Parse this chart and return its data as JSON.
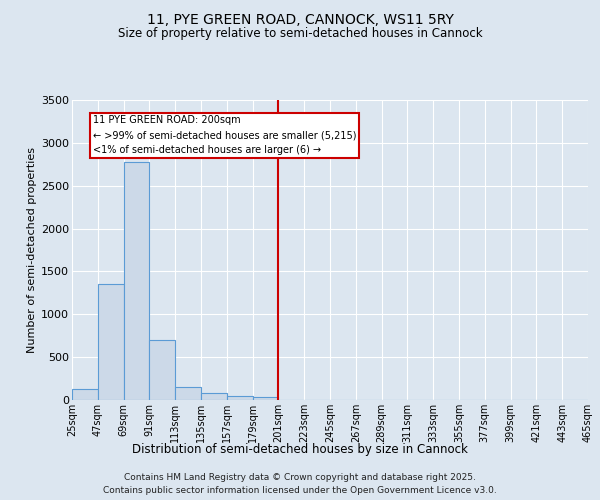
{
  "title": "11, PYE GREEN ROAD, CANNOCK, WS11 5RY",
  "subtitle": "Size of property relative to semi-detached houses in Cannock",
  "xlabel": "Distribution of semi-detached houses by size in Cannock",
  "ylabel": "Number of semi-detached properties",
  "bar_values": [
    130,
    1350,
    2780,
    700,
    150,
    80,
    50,
    30,
    0,
    0,
    0,
    0,
    0,
    0,
    0,
    0,
    0,
    0,
    0,
    0
  ],
  "bar_color": "#ccd9e8",
  "bar_edge_color": "#5b9bd5",
  "categories": [
    "25sqm",
    "47sqm",
    "69sqm",
    "91sqm",
    "113sqm",
    "135sqm",
    "157sqm",
    "179sqm",
    "201sqm",
    "223sqm",
    "245sqm",
    "267sqm",
    "289sqm",
    "311sqm",
    "333sqm",
    "355sqm",
    "377sqm",
    "399sqm",
    "421sqm",
    "443sqm",
    "465sqm"
  ],
  "vline_x": 8,
  "vline_color": "#cc0000",
  "annotation_title": "11 PYE GREEN ROAD: 200sqm",
  "annotation_line1": "← >99% of semi-detached houses are smaller (5,215)",
  "annotation_line2": "<1% of semi-detached houses are larger (6) →",
  "annotation_box_color": "#ffffff",
  "annotation_box_edge": "#cc0000",
  "ylim": [
    0,
    3500
  ],
  "yticks": [
    0,
    500,
    1000,
    1500,
    2000,
    2500,
    3000,
    3500
  ],
  "background_color": "#dce6f0",
  "grid_color": "#ffffff",
  "footer_line1": "Contains HM Land Registry data © Crown copyright and database right 2025.",
  "footer_line2": "Contains public sector information licensed under the Open Government Licence v3.0."
}
